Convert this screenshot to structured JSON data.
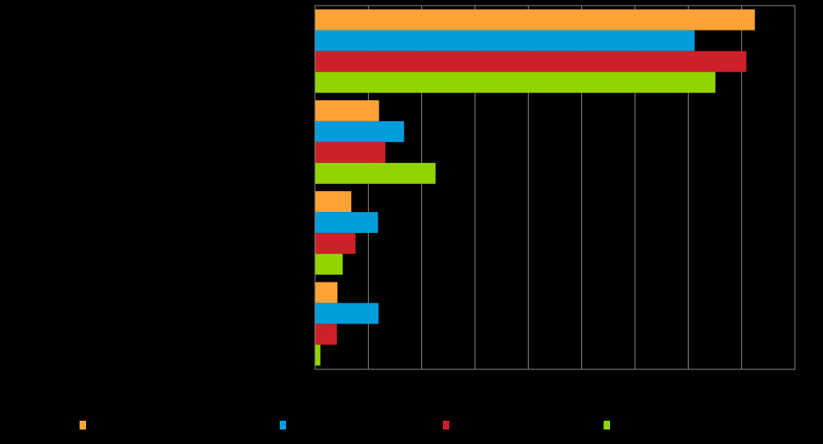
{
  "chart_data": {
    "type": "bar",
    "orientation": "horizontal",
    "title": "",
    "xlabel": "",
    "ylabel": "",
    "categories": [
      "",
      "",
      "",
      ""
    ],
    "series": [
      {
        "values": [
          82.5,
          12.0,
          6.8,
          4.2
        ],
        "color": "#FFA336"
      },
      {
        "values": [
          71.2,
          16.7,
          11.8,
          11.9
        ],
        "color": "#009DDC"
      },
      {
        "values": [
          80.9,
          13.2,
          7.6,
          4.1
        ],
        "color": "#CD2029"
      },
      {
        "values": [
          75.1,
          22.6,
          5.2,
          1.0
        ],
        "color": "#92D400"
      }
    ],
    "xlim": [
      0,
      90
    ],
    "grid": true,
    "legend_position": "bottom"
  }
}
